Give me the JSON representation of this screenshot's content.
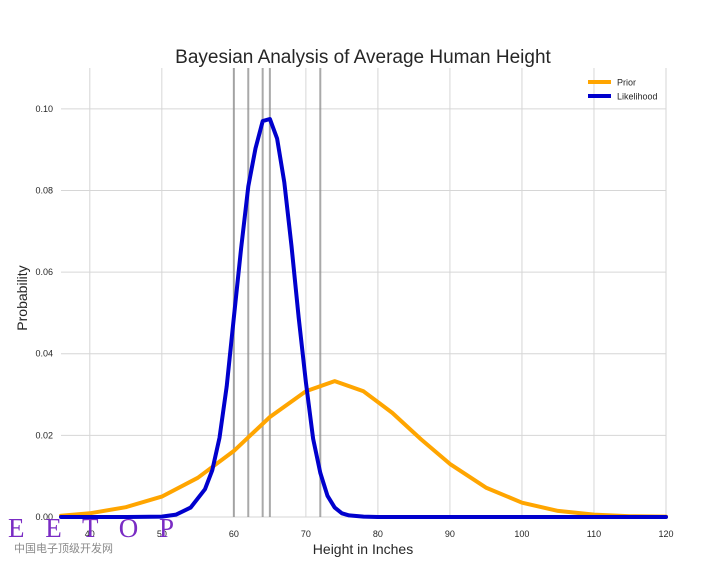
{
  "chart_data": {
    "type": "line",
    "title": "Bayesian Analysis of Average Human Height",
    "xlabel": "Height in Inches",
    "ylabel": "Probability",
    "xlim": [
      36,
      120
    ],
    "ylim": [
      0,
      0.11
    ],
    "x_ticks": [
      40,
      50,
      60,
      70,
      80,
      90,
      100,
      110,
      120
    ],
    "y_ticks": [
      0.0,
      0.02,
      0.04,
      0.06,
      0.08,
      0.1
    ],
    "x_tick_labels": [
      "40",
      "50",
      "60",
      "70",
      "80",
      "90",
      "100",
      "110",
      "120"
    ],
    "y_tick_labels": [
      "0.00",
      "0.02",
      "0.04",
      "0.06",
      "0.08",
      "0.10"
    ],
    "grid": true,
    "legend_position": "top-right",
    "vertical_lines_x": [
      60.0,
      62.0,
      64.0,
      65.0,
      72.0
    ],
    "series": [
      {
        "name": "Prior",
        "color": "#ffa500",
        "x": [
          36,
          40,
          45,
          50,
          55,
          60,
          65,
          70,
          74,
          78,
          82,
          86,
          90,
          95,
          100,
          105,
          110,
          115,
          120
        ],
        "y": [
          0.0003,
          0.0009,
          0.0024,
          0.005,
          0.0096,
          0.0162,
          0.0245,
          0.0308,
          0.0333,
          0.0308,
          0.0255,
          0.019,
          0.013,
          0.0072,
          0.0035,
          0.0015,
          0.0006,
          0.0002,
          0.0001
        ]
      },
      {
        "name": "Likelihood",
        "color": "#0000cd",
        "x": [
          36,
          40,
          45,
          50,
          52,
          54,
          56,
          57,
          58,
          59,
          60,
          61,
          62,
          63,
          64,
          65,
          66,
          67,
          68,
          69,
          70,
          71,
          72,
          73,
          74,
          75,
          76,
          78,
          80,
          85,
          90,
          100,
          110,
          120
        ],
        "y": [
          0.0,
          0.0,
          0.0,
          0.0001,
          0.0006,
          0.0023,
          0.0068,
          0.0115,
          0.0194,
          0.032,
          0.049,
          0.0658,
          0.081,
          0.0903,
          0.097,
          0.0975,
          0.0927,
          0.082,
          0.0664,
          0.0488,
          0.033,
          0.0192,
          0.0108,
          0.0052,
          0.0023,
          0.0009,
          0.0004,
          0.0001,
          0.0,
          0.0,
          0.0,
          0.0,
          0.0,
          0.0
        ]
      }
    ]
  },
  "watermark": {
    "logo": "E E T O P",
    "subtitle": "中国电子顶级开发网"
  }
}
